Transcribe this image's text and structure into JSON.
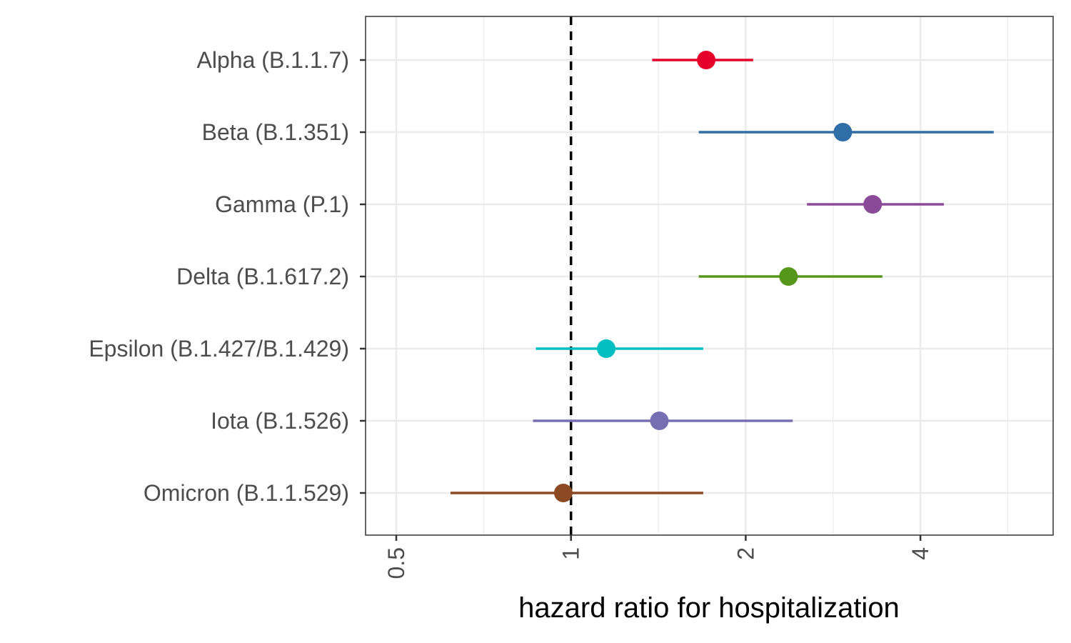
{
  "chart_data": {
    "type": "forest",
    "title": "",
    "xlabel": "hazard ratio for hospitalization",
    "ylabel": "",
    "x_scale": "log2",
    "xlim": [
      0.46,
      5.6
    ],
    "x_ticks": [
      {
        "value": 0.5,
        "label": "0.5"
      },
      {
        "value": 1,
        "label": "1"
      },
      {
        "value": 2,
        "label": "2"
      },
      {
        "value": 4,
        "label": "4"
      }
    ],
    "reference_line": {
      "value": 1,
      "style": "dashed",
      "color": "#000000"
    },
    "grid": true,
    "legend": "none",
    "categories": [
      {
        "label": "Alpha (B.1.1.7)",
        "estimate": 1.71,
        "lower": 1.38,
        "upper": 2.06,
        "color": "#e4002b"
      },
      {
        "label": "Beta (B.1.351)",
        "estimate": 2.94,
        "lower": 1.66,
        "upper": 5.35,
        "color": "#2f6ea6"
      },
      {
        "label": "Gamma (P.1)",
        "estimate": 3.31,
        "lower": 2.55,
        "upper": 4.39,
        "color": "#8b4a98"
      },
      {
        "label": "Delta (B.1.617.2)",
        "estimate": 2.37,
        "lower": 1.66,
        "upper": 3.44,
        "color": "#56961b"
      },
      {
        "label": "Epsilon (B.1.427/B.1.429)",
        "estimate": 1.15,
        "lower": 0.87,
        "upper": 1.69,
        "color": "#00bec2"
      },
      {
        "label": "Iota (B.1.526)",
        "estimate": 1.42,
        "lower": 0.86,
        "upper": 2.41,
        "color": "#7670b3"
      },
      {
        "label": "Omicron (B.1.1.529)",
        "estimate": 0.97,
        "lower": 0.62,
        "upper": 1.69,
        "color": "#8b4a24"
      }
    ]
  }
}
